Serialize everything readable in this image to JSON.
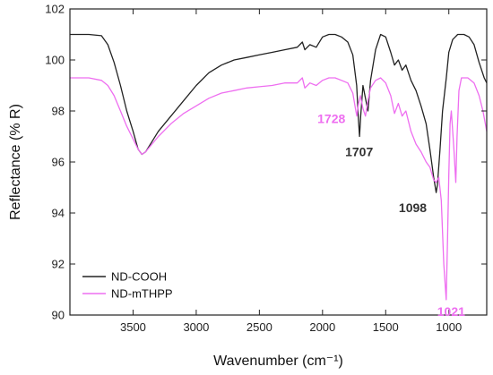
{
  "chart_data": {
    "type": "line",
    "xlabel": "Wavenumber (cm⁻¹)",
    "ylabel": "Reflectance (% R)",
    "xlim": [
      4000,
      700
    ],
    "ylim": [
      90,
      102
    ],
    "x_reversed": true,
    "xticks": [
      3500,
      3000,
      2500,
      2000,
      1500,
      1000
    ],
    "yticks": [
      90,
      92,
      94,
      96,
      98,
      100,
      102
    ],
    "grid": false,
    "legend_position": "bottom-left",
    "series": [
      {
        "name": "ND-COOH",
        "color": "#222222",
        "points": [
          [
            4000,
            101.0
          ],
          [
            3850,
            101.0
          ],
          [
            3750,
            100.95
          ],
          [
            3700,
            100.6
          ],
          [
            3650,
            99.9
          ],
          [
            3600,
            99.0
          ],
          [
            3550,
            98.0
          ],
          [
            3500,
            97.2
          ],
          [
            3460,
            96.5
          ],
          [
            3430,
            96.3
          ],
          [
            3400,
            96.4
          ],
          [
            3350,
            96.8
          ],
          [
            3300,
            97.2
          ],
          [
            3200,
            97.8
          ],
          [
            3100,
            98.4
          ],
          [
            3000,
            99.0
          ],
          [
            2900,
            99.5
          ],
          [
            2800,
            99.8
          ],
          [
            2700,
            100.0
          ],
          [
            2600,
            100.1
          ],
          [
            2500,
            100.2
          ],
          [
            2400,
            100.3
          ],
          [
            2300,
            100.4
          ],
          [
            2200,
            100.5
          ],
          [
            2160,
            100.7
          ],
          [
            2140,
            100.4
          ],
          [
            2100,
            100.6
          ],
          [
            2050,
            100.5
          ],
          [
            2000,
            100.9
          ],
          [
            1950,
            101.0
          ],
          [
            1900,
            101.0
          ],
          [
            1850,
            100.9
          ],
          [
            1800,
            100.7
          ],
          [
            1760,
            100.2
          ],
          [
            1730,
            99.0
          ],
          [
            1715,
            97.6
          ],
          [
            1707,
            97.0
          ],
          [
            1698,
            97.8
          ],
          [
            1680,
            99.0
          ],
          [
            1660,
            98.5
          ],
          [
            1640,
            98.0
          ],
          [
            1620,
            99.2
          ],
          [
            1580,
            100.4
          ],
          [
            1540,
            101.0
          ],
          [
            1500,
            100.9
          ],
          [
            1460,
            100.3
          ],
          [
            1430,
            99.8
          ],
          [
            1400,
            100.0
          ],
          [
            1370,
            99.6
          ],
          [
            1340,
            99.8
          ],
          [
            1300,
            99.2
          ],
          [
            1260,
            98.8
          ],
          [
            1220,
            98.2
          ],
          [
            1180,
            97.5
          ],
          [
            1150,
            96.5
          ],
          [
            1120,
            95.4
          ],
          [
            1100,
            94.8
          ],
          [
            1090,
            95.1
          ],
          [
            1070,
            96.5
          ],
          [
            1050,
            98.0
          ],
          [
            1020,
            99.3
          ],
          [
            1000,
            100.3
          ],
          [
            970,
            100.8
          ],
          [
            930,
            101.0
          ],
          [
            880,
            101.0
          ],
          [
            840,
            100.9
          ],
          [
            800,
            100.6
          ],
          [
            760,
            99.9
          ],
          [
            720,
            99.3
          ],
          [
            700,
            99.1
          ]
        ]
      },
      {
        "name": "ND-mTHPP",
        "color": "#ee6ef0",
        "points": [
          [
            4000,
            99.3
          ],
          [
            3850,
            99.3
          ],
          [
            3750,
            99.2
          ],
          [
            3700,
            99.0
          ],
          [
            3650,
            98.6
          ],
          [
            3600,
            98.0
          ],
          [
            3550,
            97.4
          ],
          [
            3500,
            96.9
          ],
          [
            3460,
            96.5
          ],
          [
            3430,
            96.3
          ],
          [
            3400,
            96.4
          ],
          [
            3350,
            96.7
          ],
          [
            3300,
            97.0
          ],
          [
            3200,
            97.5
          ],
          [
            3100,
            97.9
          ],
          [
            3000,
            98.2
          ],
          [
            2900,
            98.5
          ],
          [
            2800,
            98.7
          ],
          [
            2700,
            98.8
          ],
          [
            2600,
            98.9
          ],
          [
            2500,
            98.95
          ],
          [
            2400,
            99.0
          ],
          [
            2300,
            99.1
          ],
          [
            2200,
            99.1
          ],
          [
            2160,
            99.3
          ],
          [
            2140,
            98.9
          ],
          [
            2100,
            99.1
          ],
          [
            2050,
            99.0
          ],
          [
            2000,
            99.2
          ],
          [
            1950,
            99.3
          ],
          [
            1900,
            99.3
          ],
          [
            1850,
            99.2
          ],
          [
            1800,
            99.1
          ],
          [
            1760,
            98.7
          ],
          [
            1740,
            98.1
          ],
          [
            1728,
            97.8
          ],
          [
            1715,
            98.3
          ],
          [
            1700,
            98.6
          ],
          [
            1680,
            98.1
          ],
          [
            1660,
            97.8
          ],
          [
            1640,
            98.4
          ],
          [
            1620,
            98.9
          ],
          [
            1580,
            99.2
          ],
          [
            1540,
            99.3
          ],
          [
            1500,
            99.1
          ],
          [
            1460,
            98.6
          ],
          [
            1430,
            97.9
          ],
          [
            1400,
            98.3
          ],
          [
            1370,
            97.8
          ],
          [
            1340,
            98.0
          ],
          [
            1300,
            97.2
          ],
          [
            1260,
            96.7
          ],
          [
            1220,
            96.4
          ],
          [
            1180,
            96.0
          ],
          [
            1150,
            95.8
          ],
          [
            1120,
            95.3
          ],
          [
            1100,
            95.2
          ],
          [
            1080,
            95.4
          ],
          [
            1060,
            94.5
          ],
          [
            1040,
            92.0
          ],
          [
            1021,
            90.6
          ],
          [
            1010,
            93.0
          ],
          [
            1000,
            95.5
          ],
          [
            990,
            97.5
          ],
          [
            980,
            98.0
          ],
          [
            960,
            96.5
          ],
          [
            945,
            95.2
          ],
          [
            935,
            97.0
          ],
          [
            920,
            98.8
          ],
          [
            900,
            99.3
          ],
          [
            850,
            99.3
          ],
          [
            800,
            99.1
          ],
          [
            760,
            98.6
          ],
          [
            730,
            98.0
          ],
          [
            700,
            97.2
          ]
        ]
      }
    ],
    "annotations": [
      {
        "text": "1728",
        "x": 1728,
        "y": 97.8,
        "color": "#ee6ef0"
      },
      {
        "text": "1707",
        "x": 1707,
        "y": 97.0,
        "color": "#333333"
      },
      {
        "text": "1098",
        "x": 1098,
        "y": 94.8,
        "color": "#333333"
      },
      {
        "text": "1021",
        "x": 1021,
        "y": 90.6,
        "color": "#ee6ef0"
      }
    ]
  }
}
